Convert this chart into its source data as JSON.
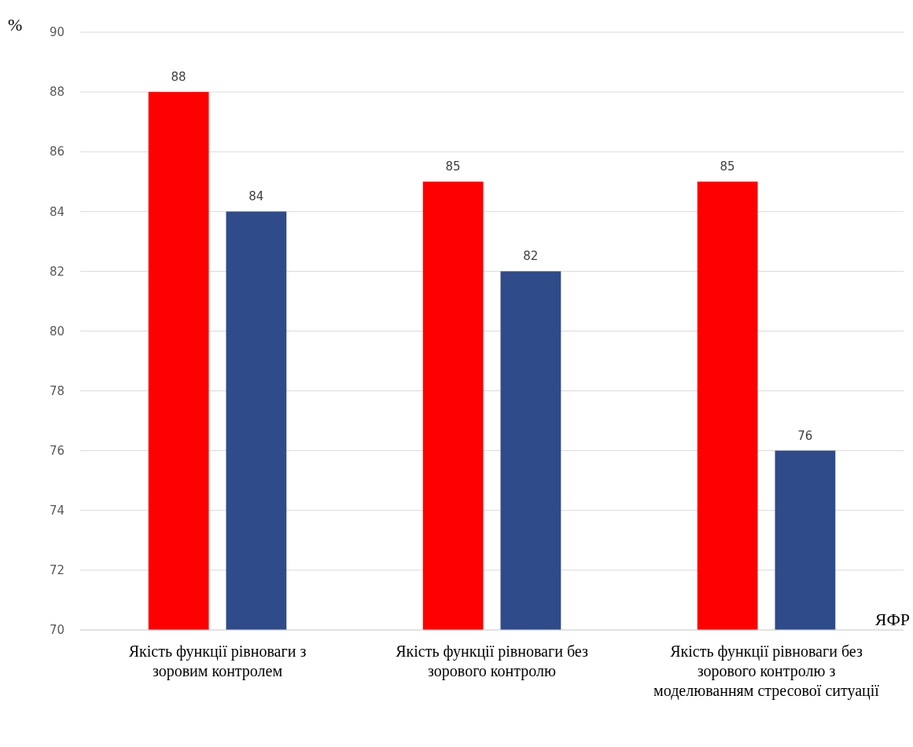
{
  "chart_data": {
    "type": "bar",
    "ylabel": "%",
    "xlabel": "ЯФР",
    "categories": [
      "Якість функції рівноваги з зоровим контролем",
      "Якість функції рівноваги без зорового контролю",
      "Якість функції рівноваги без зорового контролю з моделюванням стресової ситуації"
    ],
    "series": [
      {
        "color": "#ff0000",
        "values": [
          88,
          85,
          85
        ]
      },
      {
        "color": "#2f4b8a",
        "values": [
          84,
          82,
          76
        ]
      }
    ],
    "ylim": [
      70,
      90
    ],
    "yticks": [
      70,
      72,
      74,
      76,
      78,
      80,
      82,
      84,
      86,
      88,
      90
    ],
    "grid": "y",
    "data_labels": true
  }
}
